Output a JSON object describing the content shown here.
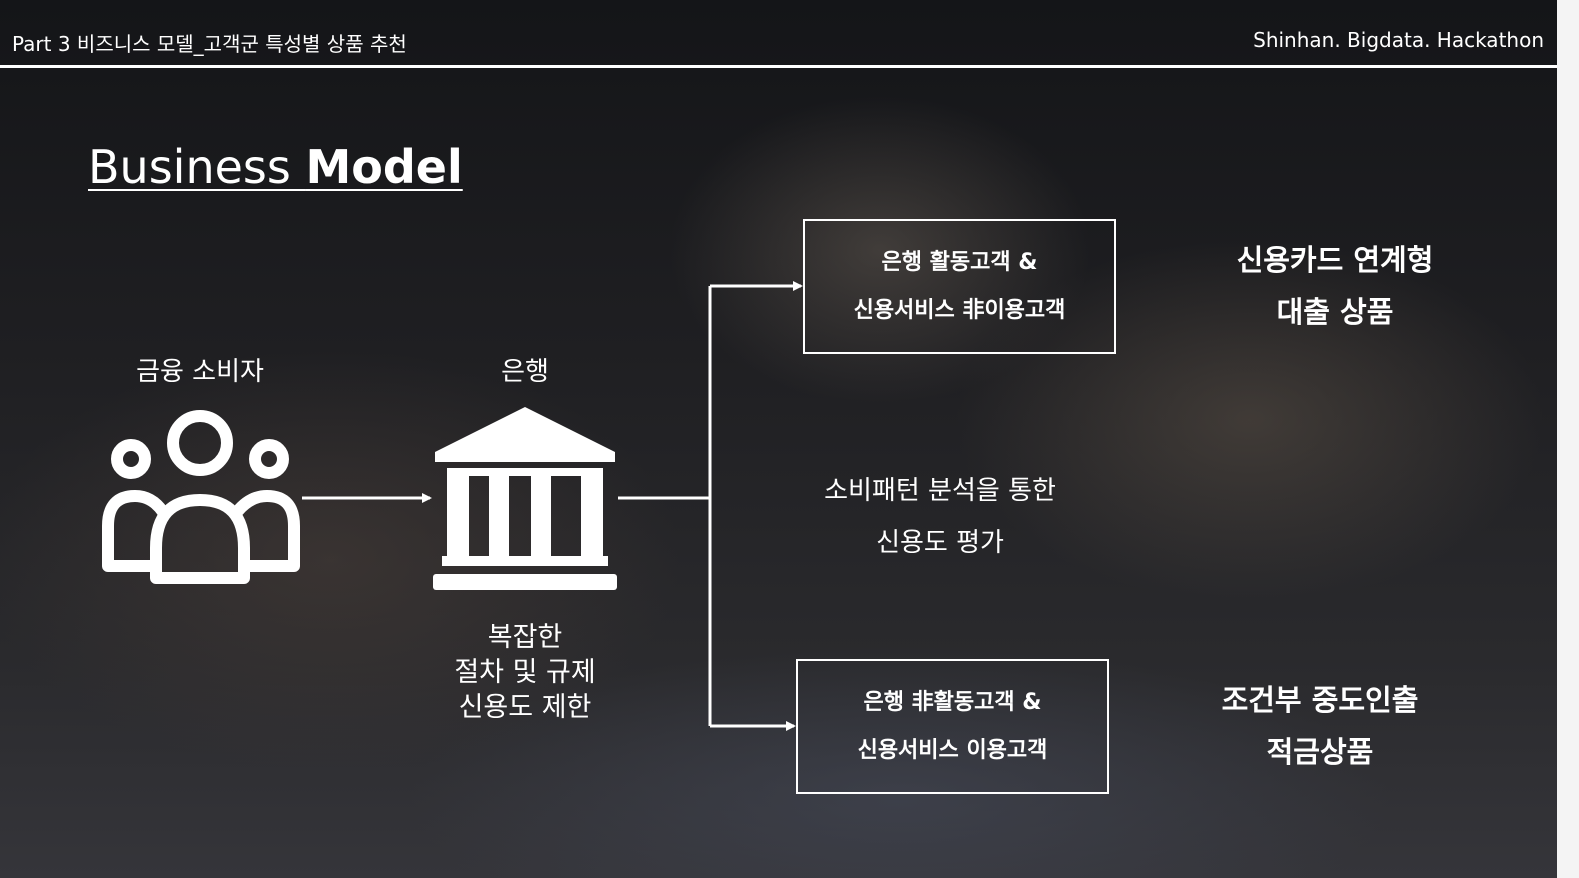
{
  "header": {
    "left_title": "Part 3 비즈니스 모델_고객군 특성별 상품 추천",
    "right_title": "Shinhan. Bigdata. Hackathon"
  },
  "slide": {
    "title_regular": "Business ",
    "title_bold": "Model"
  },
  "diagram": {
    "consumer": {
      "label": "금융 소비자",
      "icon": "people-group-icon"
    },
    "bank": {
      "label": "은행",
      "icon": "bank-building-icon",
      "desc_lines": [
        "복잡한",
        "절차 및 규제",
        "신용도 제한"
      ]
    },
    "analysis_lines": [
      "소비패턴 분석을 통한",
      "신용도 평가"
    ],
    "segments": [
      {
        "lines": [
          "은행 활동고객 &",
          "신용서비스 非이용고객"
        ]
      },
      {
        "lines": [
          "은행 非활동고객 &",
          "신용서비스 이용고객"
        ]
      }
    ],
    "products": [
      {
        "lines": [
          "신용카드 연계형",
          "대출 상품"
        ]
      },
      {
        "lines": [
          "조건부 중도인출",
          "적금상품"
        ]
      }
    ]
  }
}
